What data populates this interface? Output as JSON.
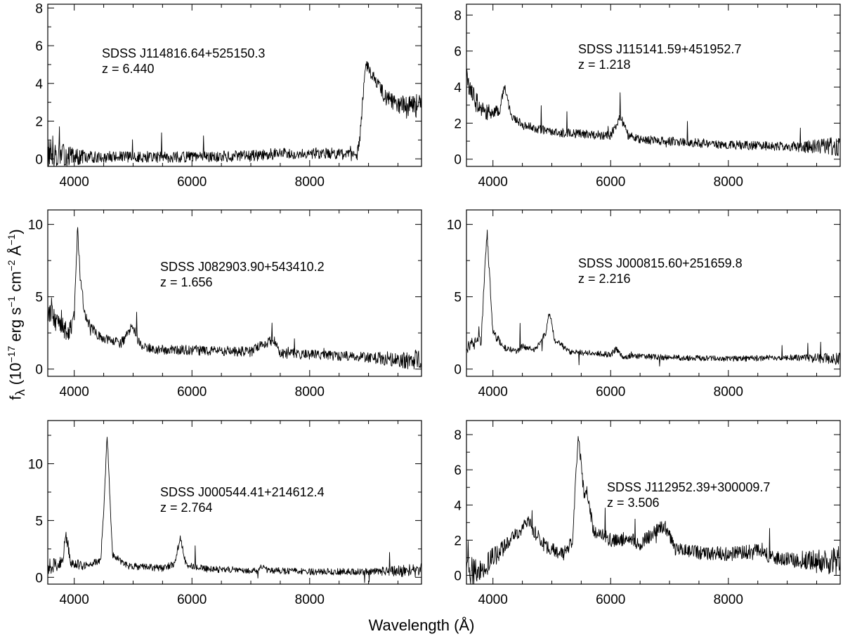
{
  "figure": {
    "ylabel_pre": "f",
    "ylabel_sub": "λ",
    "ylabel_a": " (10",
    "ylabel_e1": "−17",
    "ylabel_b": " erg s",
    "ylabel_e2": "−1",
    "ylabel_c": " cm",
    "ylabel_e3": "−2",
    "ylabel_d": " Å",
    "ylabel_e4": "−1",
    "ylabel_f": ")",
    "xlabel": "Wavelength (Å)"
  },
  "chart_data": [
    {
      "type": "line",
      "name_line": "SDSS J114816.64+525150.3",
      "z_line": "z = 6.440",
      "xlim": [
        3550,
        9900
      ],
      "ylim": [
        -0.4,
        8.2
      ],
      "xticks": [
        4000,
        6000,
        8000
      ],
      "yticks": [
        0,
        2,
        4,
        6,
        8
      ],
      "noise": 0.3,
      "x": [
        3550,
        4000,
        5000,
        6000,
        7000,
        7500,
        8000,
        8500,
        8800,
        8850,
        8950,
        9050,
        9300,
        9600,
        9900
      ],
      "y": [
        0.3,
        0.1,
        0.1,
        0.1,
        0.15,
        0.3,
        0.3,
        0.3,
        0.1,
        1.0,
        5.1,
        4.5,
        3.2,
        2.8,
        2.8
      ]
    },
    {
      "type": "line",
      "name_line": "SDSS J115141.59+451952.7",
      "z_line": "z = 1.218",
      "xlim": [
        3550,
        9900
      ],
      "ylim": [
        -0.4,
        8.6
      ],
      "xticks": [
        4000,
        6000,
        8000
      ],
      "yticks": [
        0,
        2,
        4,
        6,
        8
      ],
      "noise": 0.25,
      "x": [
        3550,
        3700,
        3900,
        4100,
        4200,
        4300,
        4500,
        5000,
        5500,
        6000,
        6150,
        6200,
        6300,
        6500,
        7000,
        8000,
        9000,
        9900
      ],
      "y": [
        4.5,
        3.2,
        2.6,
        2.6,
        4.2,
        2.5,
        1.9,
        1.5,
        1.4,
        1.3,
        2.3,
        2.1,
        1.3,
        1.1,
        1.0,
        0.8,
        0.7,
        0.7
      ]
    },
    {
      "type": "line",
      "name_line": "SDSS J082903.90+543410.2",
      "z_line": "z = 1.656",
      "xlim": [
        3550,
        9900
      ],
      "ylim": [
        -0.5,
        11.0
      ],
      "xticks": [
        4000,
        6000,
        8000
      ],
      "yticks": [
        0,
        5,
        10
      ],
      "noise": 0.35,
      "x": [
        3550,
        3900,
        4000,
        4060,
        4100,
        4200,
        4400,
        4800,
        5000,
        5100,
        5300,
        6000,
        7000,
        7300,
        7400,
        7500,
        8000,
        9000,
        9900
      ],
      "y": [
        4.0,
        2.5,
        3.5,
        10.0,
        6.0,
        3.5,
        2.3,
        1.8,
        3.0,
        1.8,
        1.4,
        1.3,
        1.2,
        1.9,
        2.0,
        1.1,
        1.0,
        0.8,
        0.6
      ]
    },
    {
      "type": "line",
      "name_line": "SDSS J000815.60+251659.8",
      "z_line": "z = 2.216",
      "xlim": [
        3550,
        9900
      ],
      "ylim": [
        -0.5,
        11.0
      ],
      "xticks": [
        4000,
        6000,
        8000
      ],
      "yticks": [
        0,
        5,
        10
      ],
      "noise": 0.2,
      "x": [
        3550,
        3800,
        3850,
        3900,
        4000,
        4200,
        4400,
        4500,
        4700,
        4900,
        4960,
        5050,
        5300,
        6000,
        6100,
        6200,
        7000,
        8000,
        9000,
        9900
      ],
      "y": [
        1.5,
        2.0,
        6.0,
        9.5,
        2.5,
        1.5,
        1.2,
        1.6,
        1.3,
        2.5,
        4.0,
        2.0,
        1.2,
        1.0,
        1.4,
        0.9,
        0.8,
        0.7,
        0.8,
        0.7
      ]
    },
    {
      "type": "line",
      "name_line": "SDSS J000544.41+214612.4",
      "z_line": "z = 2.764",
      "xlim": [
        3550,
        9900
      ],
      "ylim": [
        -0.6,
        13.8
      ],
      "xticks": [
        4000,
        6000,
        8000
      ],
      "yticks": [
        0,
        5,
        10
      ],
      "noise": 0.3,
      "x": [
        3550,
        3800,
        3850,
        3950,
        4200,
        4450,
        4500,
        4560,
        4650,
        4900,
        5500,
        5700,
        5800,
        5900,
        6300,
        7100,
        7200,
        7300,
        8000,
        9000,
        9900
      ],
      "y": [
        1.0,
        1.2,
        4.0,
        1.2,
        1.0,
        1.5,
        6.0,
        12.5,
        2.0,
        1.0,
        0.8,
        1.2,
        3.5,
        1.1,
        0.7,
        0.6,
        1.0,
        0.6,
        0.5,
        0.5,
        0.6
      ]
    },
    {
      "type": "line",
      "name_line": "SDSS J112952.39+300009.7",
      "z_line": "z = 3.506",
      "xlim": [
        3550,
        9900
      ],
      "ylim": [
        -0.5,
        8.8
      ],
      "xticks": [
        4000,
        6000,
        8000
      ],
      "yticks": [
        0,
        2,
        4,
        6,
        8
      ],
      "noise": 0.4,
      "x": [
        3550,
        3800,
        4000,
        4300,
        4600,
        4700,
        4900,
        5200,
        5350,
        5450,
        5550,
        5600,
        5700,
        6000,
        6300,
        6500,
        6900,
        6950,
        7100,
        7500,
        8000,
        8500,
        8600,
        8700,
        9000,
        9500,
        9900
      ],
      "y": [
        0.2,
        0.3,
        1.0,
        2.0,
        3.0,
        2.5,
        1.6,
        1.2,
        2.0,
        8.0,
        4.5,
        4.8,
        2.6,
        2.0,
        2.1,
        1.8,
        2.8,
        2.6,
        1.5,
        1.3,
        1.2,
        1.4,
        1.5,
        1.0,
        0.9,
        0.8,
        0.8
      ]
    }
  ]
}
